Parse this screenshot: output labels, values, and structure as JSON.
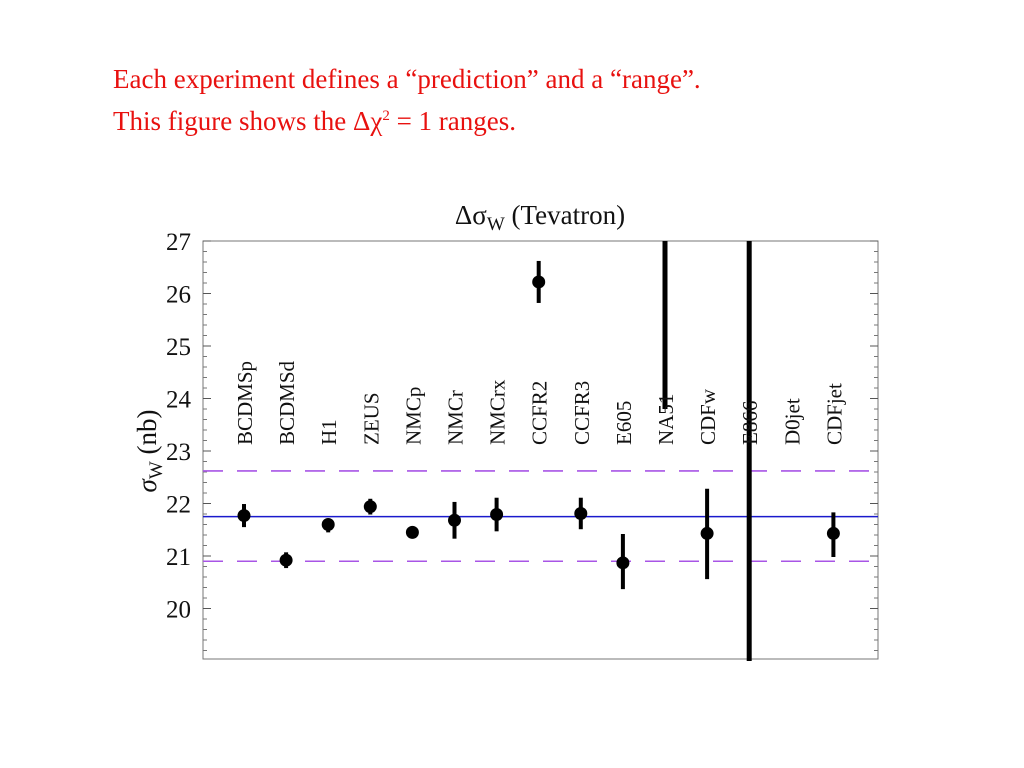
{
  "slide": {
    "line1": "Each experiment defines a “prediction” and a “range”.",
    "line2_pre": "This figure shows the Δχ",
    "line2_sup": "2",
    "line2_post": " = 1 ranges.",
    "text_color": "#e8110f"
  },
  "chart_data": {
    "type": "scatter",
    "title": "Δσ",
    "title_subscript": "W",
    "title_suffix": " (Tevatron)",
    "ylabel": "σ",
    "ylabel_subscript": "W",
    "ylabel_suffix": " (nb)",
    "ylim": [
      19,
      27
    ],
    "yticks": [
      20,
      21,
      22,
      23,
      24,
      25,
      26,
      27
    ],
    "categories": [
      "BCDMSp",
      "BCDMSd",
      "H1",
      "ZEUS",
      "NMCp",
      "NMCr",
      "NMCrx",
      "CCFR2",
      "CCFR3",
      "E605",
      "NA51",
      "CDFw",
      "E866",
      "D0jet",
      "CDFjet"
    ],
    "values": [
      21.77,
      20.92,
      21.6,
      21.94,
      21.45,
      21.68,
      21.79,
      26.22,
      21.81,
      20.87,
      null,
      21.43,
      null,
      null,
      21.43
    ],
    "err_low": [
      0.22,
      0.15,
      0.15,
      0.15,
      0.1,
      0.35,
      0.32,
      0.4,
      0.3,
      0.5,
      null,
      0.87,
      null,
      null,
      0.45
    ],
    "err_high": [
      0.22,
      0.15,
      0.1,
      0.15,
      0.1,
      0.35,
      0.32,
      0.4,
      0.3,
      0.55,
      null,
      0.85,
      null,
      null,
      0.4
    ],
    "range_only": [
      {
        "category": "NA51",
        "low": 23.8,
        "high": 27
      },
      {
        "category": "E866",
        "low": 19,
        "high": 27
      }
    ],
    "central_line": 21.75,
    "band": [
      20.9,
      22.62
    ],
    "colors": {
      "central": "#1a1acc",
      "band": "#a855e6",
      "points": "#000000"
    },
    "grid": false,
    "legend": "none"
  }
}
